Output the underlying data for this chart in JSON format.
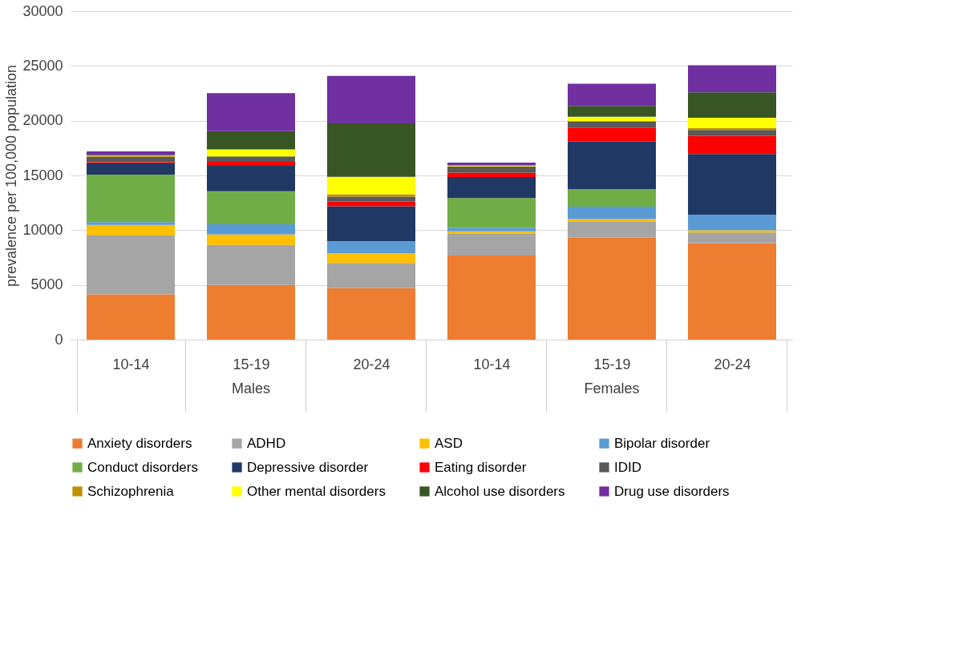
{
  "chart_data": {
    "type": "bar",
    "stacked": true,
    "ylabel": "prevalence per 100,000 population",
    "categories": [
      "10-14",
      "15-19",
      "20-24",
      "10-14",
      "15-19",
      "20-24"
    ],
    "annotations": [
      "Males",
      "Females"
    ],
    "ylim": [
      0,
      30000
    ],
    "yticks": [
      0,
      5000,
      10000,
      15000,
      20000,
      25000,
      30000
    ],
    "grid": "y",
    "legend": "bottom",
    "series": [
      {
        "name": "Anxiety disorders",
        "color": "#ed7d31",
        "values": [
          4130,
          5000,
          4710,
          7690,
          9310,
          8810
        ]
      },
      {
        "name": "ADHD",
        "color": "#a5a5a5",
        "values": [
          5380,
          3660,
          2290,
          2020,
          1450,
          980
        ]
      },
      {
        "name": "ASD",
        "color": "#ffc000",
        "values": [
          980,
          940,
          910,
          180,
          250,
          190
        ]
      },
      {
        "name": "Bipolar disorder",
        "color": "#5b9bd5",
        "values": [
          250,
          940,
          1080,
          340,
          1140,
          1430
        ]
      },
      {
        "name": "Conduct disorders",
        "color": "#70ad47",
        "values": [
          4330,
          3010,
          0,
          2700,
          1590,
          0
        ]
      },
      {
        "name": "Depressive disorder",
        "color": "#203864",
        "values": [
          1030,
          2320,
          3190,
          1930,
          4360,
          5540
        ]
      },
      {
        "name": "Eating disorder",
        "color": "#ff0000",
        "values": [
          110,
          380,
          450,
          390,
          1270,
          1660
        ]
      },
      {
        "name": "IDID",
        "color": "#595959",
        "values": [
          490,
          480,
          440,
          560,
          560,
          540
        ]
      },
      {
        "name": "Schizophrenia",
        "color": "#bf9000",
        "values": [
          70,
          null,
          210,
          20,
          30,
          170
        ]
      },
      {
        "name": "Other mental disorders",
        "color": "#ffff00",
        "values": [
          50,
          640,
          1590,
          70,
          400,
          950
        ]
      },
      {
        "name": "Alcohol use disorders",
        "color": "#375623",
        "values": [
          60,
          1680,
          4890,
          40,
          990,
          2330
        ]
      },
      {
        "name": "Drug use disorders",
        "color": "#7030a0",
        "values": [
          320,
          3460,
          4340,
          230,
          2030,
          2460
        ]
      }
    ]
  }
}
